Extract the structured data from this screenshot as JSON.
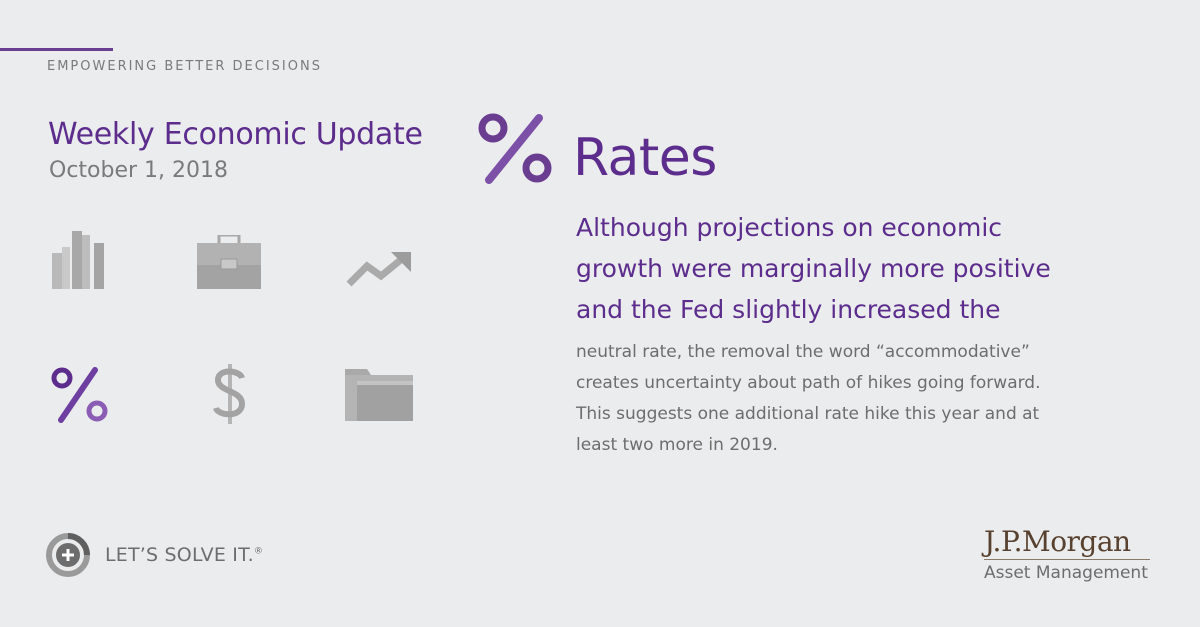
{
  "header": {
    "tagline": "EMPOWERING BETTER DECISIONS",
    "title": "Weekly Economic Update",
    "date": "October 1, 2018"
  },
  "colors": {
    "purple": "#5d2d8d",
    "gray": "#a0a0a0",
    "background": "#ebeced",
    "brand_brown": "#58412e"
  },
  "icons": [
    "bar-chart-icon",
    "briefcase-icon",
    "trend-up-icon",
    "percent-icon",
    "dollar-icon",
    "folder-icon"
  ],
  "topic": {
    "title": "Rates",
    "icon": "percent-icon",
    "lead": "Although projections on economic growth were marginally more positive and the Fed slightly increased the",
    "body": "neutral rate, the removal the word “accommodative” creates uncertainty about path of hikes going forward. This suggests one additional rate hike this year and at least two more in 2019."
  },
  "footer": {
    "slogan": "LET’S SOLVE IT.",
    "slogan_mark": "®",
    "brand_name": "J.P.Morgan",
    "brand_sub": "Asset Management"
  }
}
